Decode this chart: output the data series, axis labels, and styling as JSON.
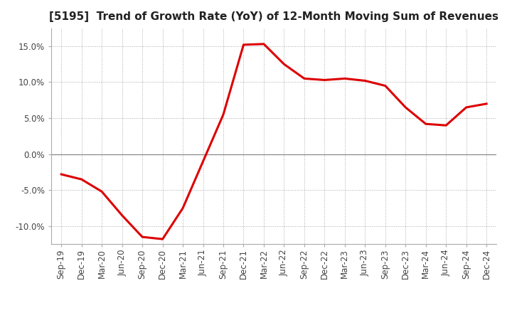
{
  "title": "[5195]  Trend of Growth Rate (YoY) of 12-Month Moving Sum of Revenues",
  "x_labels": [
    "Sep-19",
    "Dec-19",
    "Mar-20",
    "Jun-20",
    "Sep-20",
    "Dec-20",
    "Mar-21",
    "Jun-21",
    "Sep-21",
    "Dec-21",
    "Mar-22",
    "Jun-22",
    "Sep-22",
    "Dec-22",
    "Mar-23",
    "Jun-23",
    "Sep-23",
    "Dec-23",
    "Mar-24",
    "Jun-24",
    "Sep-24",
    "Dec-24"
  ],
  "y_values": [
    -2.8,
    -3.5,
    -5.2,
    -8.5,
    -11.5,
    -11.8,
    -7.5,
    -1.0,
    5.5,
    15.2,
    15.3,
    12.5,
    10.5,
    10.3,
    10.5,
    10.2,
    9.5,
    6.5,
    4.2,
    4.0,
    6.5,
    7.0
  ],
  "line_color": "#dd0000",
  "ylim": [
    -12.5,
    17.5
  ],
  "yticks": [
    -10.0,
    -5.0,
    0.0,
    5.0,
    10.0,
    15.0
  ],
  "background_color": "#ffffff",
  "grid_color": "#aaaaaa",
  "title_fontsize": 11,
  "axis_fontsize": 8.5
}
